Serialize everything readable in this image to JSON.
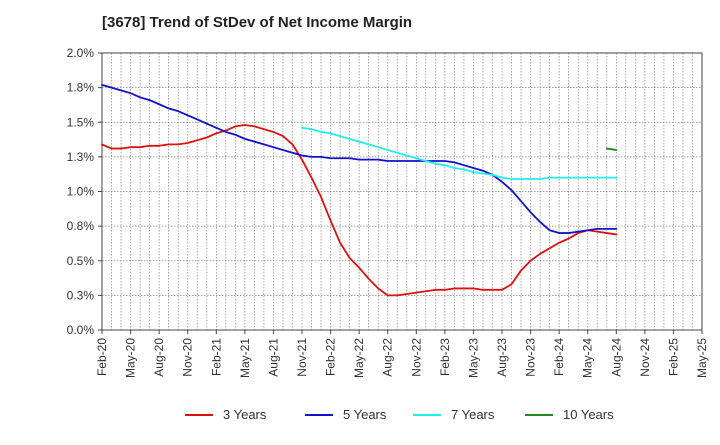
{
  "chart_data": {
    "type": "line",
    "title": "[3678]  Trend of StDev of Net Income Margin",
    "xlabel": "",
    "ylabel": "",
    "ylim": [
      0.0,
      2.0
    ],
    "y_ticks": [
      "0.0%",
      "0.3%",
      "0.5%",
      "0.8%",
      "1.0%",
      "1.3%",
      "1.5%",
      "1.8%",
      "2.0%"
    ],
    "y_tick_values": [
      0.0,
      0.25,
      0.5,
      0.75,
      1.0,
      1.25,
      1.5,
      1.75,
      2.0
    ],
    "x_ticks": [
      "Feb-20",
      "May-20",
      "Aug-20",
      "Nov-20",
      "Feb-21",
      "May-21",
      "Aug-21",
      "Nov-21",
      "Feb-22",
      "May-22",
      "Aug-22",
      "Nov-22",
      "Feb-23",
      "May-23",
      "Aug-23",
      "Nov-23",
      "Feb-24",
      "May-24",
      "Aug-24",
      "Nov-24",
      "Feb-25",
      "May-25"
    ],
    "grid": true,
    "legend_position": "bottom",
    "series": [
      {
        "name": "3 Years",
        "color": "#dd1111",
        "values": [
          [
            0,
            1.34
          ],
          [
            1,
            1.31
          ],
          [
            2,
            1.31
          ],
          [
            3,
            1.32
          ],
          [
            4,
            1.32
          ],
          [
            5,
            1.33
          ],
          [
            6,
            1.33
          ],
          [
            7,
            1.34
          ],
          [
            8,
            1.34
          ],
          [
            9,
            1.35
          ],
          [
            10,
            1.37
          ],
          [
            11,
            1.39
          ],
          [
            12,
            1.42
          ],
          [
            13,
            1.44
          ],
          [
            14,
            1.47
          ],
          [
            15,
            1.48
          ],
          [
            16,
            1.47
          ],
          [
            17,
            1.45
          ],
          [
            18,
            1.43
          ],
          [
            19,
            1.4
          ],
          [
            20,
            1.34
          ],
          [
            21,
            1.23
          ],
          [
            22,
            1.1
          ],
          [
            23,
            0.96
          ],
          [
            24,
            0.79
          ],
          [
            25,
            0.63
          ],
          [
            26,
            0.52
          ],
          [
            27,
            0.45
          ],
          [
            28,
            0.37
          ],
          [
            29,
            0.3
          ],
          [
            30,
            0.25
          ],
          [
            31,
            0.25
          ],
          [
            32,
            0.26
          ],
          [
            33,
            0.27
          ],
          [
            34,
            0.28
          ],
          [
            35,
            0.29
          ],
          [
            36,
            0.29
          ],
          [
            37,
            0.3
          ],
          [
            38,
            0.3
          ],
          [
            39,
            0.3
          ],
          [
            40,
            0.29
          ],
          [
            41,
            0.29
          ],
          [
            42,
            0.29
          ],
          [
            43,
            0.33
          ],
          [
            44,
            0.43
          ],
          [
            45,
            0.5
          ],
          [
            46,
            0.55
          ],
          [
            47,
            0.59
          ],
          [
            48,
            0.63
          ],
          [
            49,
            0.66
          ],
          [
            50,
            0.7
          ],
          [
            51,
            0.72
          ],
          [
            52,
            0.71
          ],
          [
            53,
            0.7
          ],
          [
            54,
            0.69
          ]
        ]
      },
      {
        "name": "5 Years",
        "color": "#1111cc",
        "values": [
          [
            0,
            1.77
          ],
          [
            1,
            1.75
          ],
          [
            2,
            1.73
          ],
          [
            3,
            1.71
          ],
          [
            4,
            1.68
          ],
          [
            5,
            1.66
          ],
          [
            6,
            1.63
          ],
          [
            7,
            1.6
          ],
          [
            8,
            1.58
          ],
          [
            9,
            1.55
          ],
          [
            10,
            1.52
          ],
          [
            11,
            1.49
          ],
          [
            12,
            1.46
          ],
          [
            13,
            1.43
          ],
          [
            14,
            1.41
          ],
          [
            15,
            1.38
          ],
          [
            16,
            1.36
          ],
          [
            17,
            1.34
          ],
          [
            18,
            1.32
          ],
          [
            19,
            1.3
          ],
          [
            20,
            1.28
          ],
          [
            21,
            1.26
          ],
          [
            22,
            1.25
          ],
          [
            23,
            1.25
          ],
          [
            24,
            1.24
          ],
          [
            25,
            1.24
          ],
          [
            26,
            1.24
          ],
          [
            27,
            1.23
          ],
          [
            28,
            1.23
          ],
          [
            29,
            1.23
          ],
          [
            30,
            1.22
          ],
          [
            31,
            1.22
          ],
          [
            32,
            1.22
          ],
          [
            33,
            1.22
          ],
          [
            34,
            1.22
          ],
          [
            35,
            1.22
          ],
          [
            36,
            1.22
          ],
          [
            37,
            1.21
          ],
          [
            38,
            1.19
          ],
          [
            39,
            1.17
          ],
          [
            40,
            1.15
          ],
          [
            41,
            1.12
          ],
          [
            42,
            1.07
          ],
          [
            43,
            1.01
          ],
          [
            44,
            0.93
          ],
          [
            45,
            0.85
          ],
          [
            46,
            0.78
          ],
          [
            47,
            0.72
          ],
          [
            48,
            0.7
          ],
          [
            49,
            0.7
          ],
          [
            50,
            0.71
          ],
          [
            51,
            0.72
          ],
          [
            52,
            0.73
          ],
          [
            53,
            0.73
          ],
          [
            54,
            0.73
          ]
        ]
      },
      {
        "name": "7 Years",
        "color": "#22eeee",
        "values": [
          [
            21,
            1.46
          ],
          [
            22,
            1.45
          ],
          [
            23,
            1.43
          ],
          [
            24,
            1.42
          ],
          [
            25,
            1.4
          ],
          [
            26,
            1.38
          ],
          [
            27,
            1.36
          ],
          [
            28,
            1.34
          ],
          [
            29,
            1.32
          ],
          [
            30,
            1.3
          ],
          [
            31,
            1.28
          ],
          [
            32,
            1.26
          ],
          [
            33,
            1.24
          ],
          [
            34,
            1.22
          ],
          [
            35,
            1.2
          ],
          [
            36,
            1.19
          ],
          [
            37,
            1.17
          ],
          [
            38,
            1.16
          ],
          [
            39,
            1.14
          ],
          [
            40,
            1.13
          ],
          [
            41,
            1.12
          ],
          [
            42,
            1.1
          ],
          [
            43,
            1.09
          ],
          [
            44,
            1.09
          ],
          [
            45,
            1.09
          ],
          [
            46,
            1.09
          ],
          [
            47,
            1.1
          ],
          [
            48,
            1.1
          ],
          [
            49,
            1.1
          ],
          [
            50,
            1.1
          ],
          [
            51,
            1.1
          ],
          [
            52,
            1.1
          ],
          [
            53,
            1.1
          ],
          [
            54,
            1.1
          ]
        ]
      },
      {
        "name": "10 Years",
        "color": "#228822",
        "values": [
          [
            53,
            1.31
          ],
          [
            54,
            1.3
          ]
        ]
      }
    ]
  }
}
